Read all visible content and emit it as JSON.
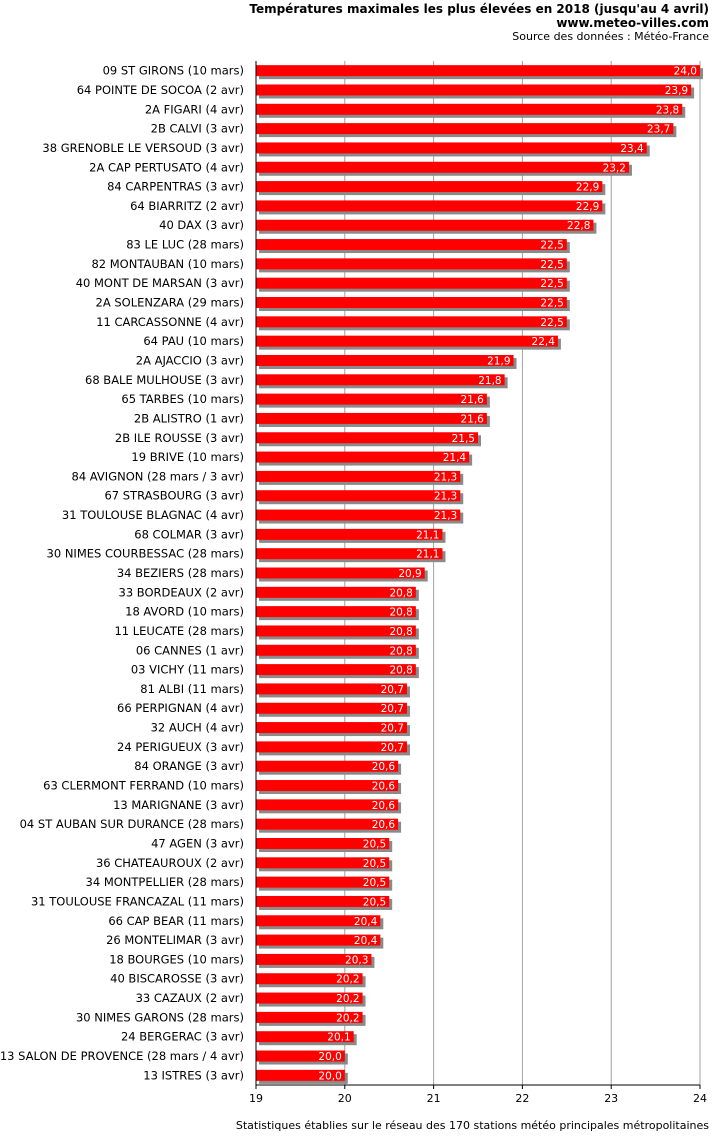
{
  "header": {
    "title": "Températures maximales les plus élevées en 2018 (jusqu'au 4 avril)",
    "site": "www.meteo-villes.com",
    "source": "Source des données : Météo-France"
  },
  "footer": {
    "note": "Statistiques établies sur le réseau des 170 stations météo principales métropolitaines"
  },
  "colors": {
    "bar": "#ff0000",
    "shadow": "#8a8a8a",
    "grid": "#a0a0a0"
  },
  "chart_data": {
    "type": "bar",
    "orientation": "horizontal",
    "title": "Températures maximales les plus élevées en 2018 (jusqu'au 4 avril)",
    "xlim": [
      19,
      24
    ],
    "xticks": [
      19,
      20,
      21,
      22,
      23,
      24
    ],
    "grid": true,
    "categories": [
      "09 ST GIRONS (10 mars)",
      "64 POINTE DE SOCOA (2 avr)",
      "2A FIGARI (4 avr)",
      "2B CALVI (3 avr)",
      "38 GRENOBLE LE VERSOUD (3 avr)",
      "2A CAP PERTUSATO (4 avr)",
      "84 CARPENTRAS (3 avr)",
      "64 BIARRITZ (2 avr)",
      "40 DAX (3 avr)",
      "83 LE LUC (28 mars)",
      "82 MONTAUBAN (10 mars)",
      "40 MONT DE MARSAN (3 avr)",
      "2A SOLENZARA (29 mars)",
      "11 CARCASSONNE (4 avr)",
      "64 PAU (10 mars)",
      "2A AJACCIO (3 avr)",
      "68 BALE MULHOUSE (3 avr)",
      "65 TARBES (10 mars)",
      "2B ALISTRO (1 avr)",
      "2B ILE ROUSSE (3 avr)",
      "19 BRIVE (10 mars)",
      "84 AVIGNON (28 mars / 3 avr)",
      "67 STRASBOURG (3 avr)",
      "31 TOULOUSE BLAGNAC (4 avr)",
      "68 COLMAR (3 avr)",
      "30 NIMES COURBESSAC (28 mars)",
      "34 BEZIERS (28 mars)",
      "33 BORDEAUX (2 avr)",
      "18 AVORD (10 mars)",
      "11 LEUCATE (28 mars)",
      "06 CANNES (1 avr)",
      "03 VICHY (11 mars)",
      "81 ALBI (11 mars)",
      "66 PERPIGNAN (4 avr)",
      "32 AUCH (4 avr)",
      "24 PERIGUEUX (3 avr)",
      "84 ORANGE (3 avr)",
      "63 CLERMONT FERRAND (10 mars)",
      "13 MARIGNANE (3 avr)",
      "04 ST AUBAN SUR DURANCE (28 mars)",
      "47 AGEN (3 avr)",
      "36 CHATEAUROUX (2 avr)",
      "34 MONTPELLIER (28 mars)",
      "31 TOULOUSE FRANCAZAL (11 mars)",
      "66 CAP BEAR (11 mars)",
      "26 MONTELIMAR (3 avr)",
      "18 BOURGES (10 mars)",
      "40 BISCAROSSE (3 avr)",
      "33 CAZAUX (2 avr)",
      "30 NIMES GARONS (28 mars)",
      "24 BERGERAC (3 avr)",
      "13 SALON DE PROVENCE (28 mars / 4 avr)",
      "13 ISTRES (3 avr)"
    ],
    "values": [
      24.0,
      23.9,
      23.8,
      23.7,
      23.4,
      23.2,
      22.9,
      22.9,
      22.8,
      22.5,
      22.5,
      22.5,
      22.5,
      22.5,
      22.4,
      21.9,
      21.8,
      21.6,
      21.6,
      21.5,
      21.4,
      21.3,
      21.3,
      21.3,
      21.1,
      21.1,
      20.9,
      20.8,
      20.8,
      20.8,
      20.8,
      20.8,
      20.7,
      20.7,
      20.7,
      20.7,
      20.6,
      20.6,
      20.6,
      20.6,
      20.5,
      20.5,
      20.5,
      20.5,
      20.4,
      20.4,
      20.3,
      20.2,
      20.2,
      20.2,
      20.1,
      20.0,
      20.0
    ],
    "labels": [
      "24,0",
      "23,9",
      "23,8",
      "23,7",
      "23,4",
      "23,2",
      "22,9",
      "22,9",
      "22,8",
      "22,5",
      "22,5",
      "22,5",
      "22,5",
      "22,5",
      "22,4",
      "21,9",
      "21,8",
      "21,6",
      "21,6",
      "21,5",
      "21,4",
      "21,3",
      "21,3",
      "21,3",
      "21,1",
      "21,1",
      "20,9",
      "20,8",
      "20,8",
      "20,8",
      "20,8",
      "20,8",
      "20,7",
      "20,7",
      "20,7",
      "20,7",
      "20,6",
      "20,6",
      "20,6",
      "20,6",
      "20,5",
      "20,5",
      "20,5",
      "20,5",
      "20,4",
      "20,4",
      "20,3",
      "20,2",
      "20,2",
      "20,2",
      "20,1",
      "20,0",
      "20,0"
    ]
  }
}
